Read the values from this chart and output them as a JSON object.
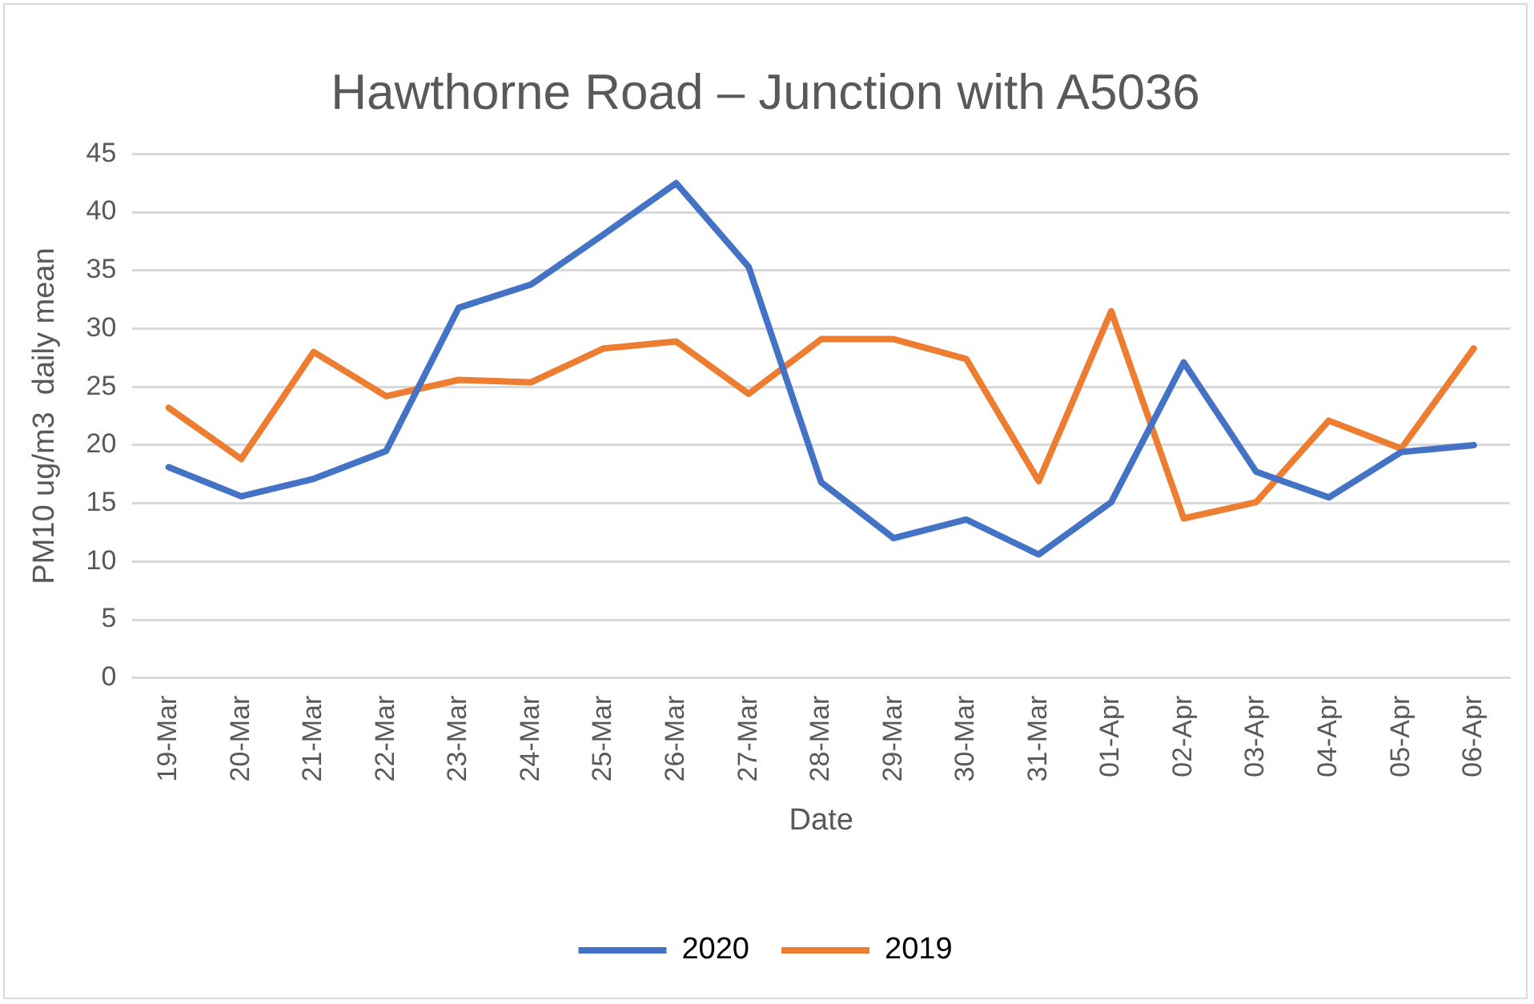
{
  "chart_data": {
    "type": "line",
    "title": "Hawthorne Road – Junction with A5036",
    "xlabel": "Date",
    "ylabel": "PM10 ug/m3  daily mean",
    "categories": [
      "19-Mar",
      "20-Mar",
      "21-Mar",
      "22-Mar",
      "23-Mar",
      "24-Mar",
      "25-Mar",
      "26-Mar",
      "27-Mar",
      "28-Mar",
      "29-Mar",
      "30-Mar",
      "31-Mar",
      "01-Apr",
      "02-Apr",
      "03-Apr",
      "04-Apr",
      "05-Apr",
      "06-Apr"
    ],
    "series": [
      {
        "name": "2020",
        "color": "#4472c4",
        "values": [
          18.1,
          15.6,
          17.1,
          19.5,
          31.8,
          33.8,
          38.1,
          42.5,
          35.3,
          16.8,
          12.0,
          13.6,
          10.6,
          15.1,
          27.1,
          17.7,
          15.5,
          19.4,
          20.0
        ]
      },
      {
        "name": "2019",
        "color": "#ed7d31",
        "values": [
          23.2,
          18.8,
          28.0,
          24.2,
          25.6,
          25.4,
          28.3,
          28.9,
          24.4,
          29.1,
          29.1,
          27.4,
          16.9,
          31.5,
          13.7,
          15.1,
          22.1,
          19.7,
          28.3
        ]
      }
    ],
    "ylim": [
      0,
      45
    ],
    "yticks": [
      0,
      5,
      10,
      15,
      20,
      25,
      30,
      35,
      40,
      45
    ],
    "grid": "y",
    "legend": "bottom",
    "marker": "none",
    "line_style": "solid"
  }
}
